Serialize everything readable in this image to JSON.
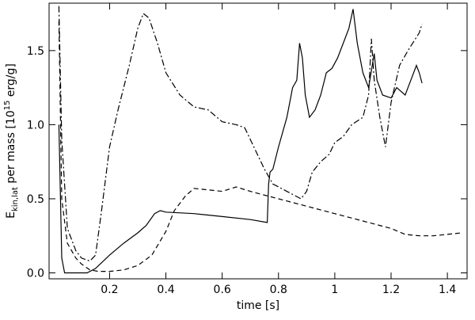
{
  "chart_data": {
    "type": "line",
    "xlabel": "time [s]",
    "ylabel": [
      "E",
      "kin,lat",
      " per mass [10",
      "15",
      " erg/g]"
    ],
    "xlim": [
      -0.015,
      1.47
    ],
    "ylim": [
      -0.04,
      1.82
    ],
    "xticks": [
      0.2,
      0.4,
      0.6,
      0.8,
      1.0,
      1.2,
      1.4
    ],
    "yticks": [
      {
        "value": 0,
        "label": "0.0"
      },
      0.5,
      {
        "value": 1,
        "label": "1.0"
      },
      1.5
    ],
    "grid": false,
    "series": [
      {
        "color": "#000000",
        "dash": "solid",
        "x": [
          0.02,
          0.03,
          0.04,
          0.08,
          0.12,
          0.15,
          0.2,
          0.25,
          0.3,
          0.33,
          0.36,
          0.38,
          0.4,
          0.5,
          0.6,
          0.7,
          0.76,
          0.765,
          0.77,
          0.78,
          0.8,
          0.83,
          0.85,
          0.865,
          0.875,
          0.885,
          0.895,
          0.91,
          0.93,
          0.95,
          0.97,
          0.99,
          1.01,
          1.03,
          1.05,
          1.065,
          1.08,
          1.1,
          1.12,
          1.14,
          1.15,
          1.17,
          1.2,
          1.22,
          1.25,
          1.27,
          1.29,
          1.3,
          1.31
        ],
        "values": [
          1.0,
          0.1,
          0.0,
          0.0,
          0.0,
          0.03,
          0.12,
          0.2,
          0.27,
          0.32,
          0.4,
          0.42,
          0.41,
          0.4,
          0.38,
          0.36,
          0.34,
          0.6,
          0.68,
          0.7,
          0.85,
          1.05,
          1.25,
          1.3,
          1.55,
          1.45,
          1.2,
          1.05,
          1.1,
          1.2,
          1.35,
          1.38,
          1.45,
          1.55,
          1.65,
          1.78,
          1.55,
          1.35,
          1.25,
          1.48,
          1.3,
          1.2,
          1.18,
          1.25,
          1.2,
          1.3,
          1.4,
          1.35,
          1.28
        ]
      },
      {
        "color": "#000000",
        "dash": "dashed",
        "x": [
          0.02,
          0.03,
          0.05,
          0.08,
          0.1,
          0.13,
          0.16,
          0.2,
          0.25,
          0.3,
          0.35,
          0.4,
          0.43,
          0.47,
          0.5,
          0.55,
          0.6,
          0.65,
          0.7,
          0.8,
          0.9,
          1.0,
          1.1,
          1.2,
          1.25,
          1.3,
          1.35,
          1.4,
          1.45
        ],
        "values": [
          1.7,
          0.5,
          0.2,
          0.1,
          0.06,
          0.02,
          0.01,
          0.01,
          0.02,
          0.05,
          0.12,
          0.28,
          0.42,
          0.52,
          0.57,
          0.56,
          0.55,
          0.58,
          0.55,
          0.5,
          0.45,
          0.4,
          0.35,
          0.3,
          0.26,
          0.25,
          0.25,
          0.26,
          0.27
        ]
      },
      {
        "color": "#000000",
        "dash": "dashdot",
        "x": [
          0.02,
          0.03,
          0.05,
          0.08,
          0.1,
          0.13,
          0.15,
          0.17,
          0.2,
          0.23,
          0.27,
          0.3,
          0.32,
          0.34,
          0.37,
          0.4,
          0.45,
          0.5,
          0.55,
          0.6,
          0.65,
          0.68,
          0.7,
          0.75,
          0.78,
          0.8,
          0.85,
          0.88,
          0.9,
          0.92,
          0.95,
          0.98,
          1.0,
          1.03,
          1.06,
          1.1,
          1.12,
          1.13,
          1.14,
          1.16,
          1.18,
          1.2,
          1.23,
          1.26,
          1.3,
          1.31
        ],
        "values": [
          1.8,
          0.9,
          0.3,
          0.15,
          0.1,
          0.08,
          0.12,
          0.4,
          0.85,
          1.1,
          1.4,
          1.65,
          1.75,
          1.72,
          1.55,
          1.35,
          1.2,
          1.12,
          1.1,
          1.02,
          1.0,
          0.98,
          0.9,
          0.7,
          0.6,
          0.58,
          0.53,
          0.5,
          0.55,
          0.68,
          0.75,
          0.8,
          0.88,
          0.92,
          1.0,
          1.05,
          1.2,
          1.58,
          1.3,
          1.05,
          0.85,
          1.15,
          1.4,
          1.5,
          1.62,
          1.68
        ]
      }
    ]
  }
}
